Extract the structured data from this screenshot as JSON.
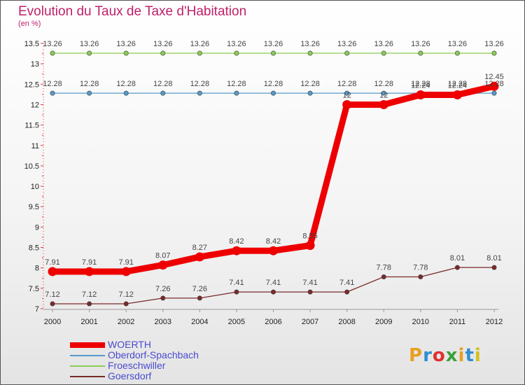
{
  "title": "Evolution du Taux de Taxe d'Habitation",
  "subtitle": "(en %)",
  "logo": {
    "text": "Proxiti",
    "colors": [
      "#e8a020",
      "#2f8fd0",
      "#e03030",
      "#3ba03a",
      "#e8a020",
      "#2f8fd0",
      "#d0c020"
    ]
  },
  "chart_data": {
    "type": "line",
    "title": "Evolution du Taux de Taxe d'Habitation",
    "ylabel": "(en %)",
    "xlabel": "",
    "x": [
      "2000",
      "2001",
      "2002",
      "2003",
      "2004",
      "2005",
      "2006",
      "2007",
      "2008",
      "2009",
      "2010",
      "2011",
      "2012"
    ],
    "ylim": [
      7,
      13.5
    ],
    "yticks": [
      "7",
      "7.5",
      "8",
      "8.5",
      "9",
      "9.5",
      "10",
      "10.5",
      "11",
      "11.5",
      "12",
      "12.5",
      "13",
      "13.5"
    ],
    "legend_position": "bottom-left",
    "series": [
      {
        "name": "WOERTH",
        "color": "#ee0000",
        "values": [
          7.91,
          7.91,
          7.91,
          8.07,
          8.27,
          8.42,
          8.42,
          8.55,
          12,
          12,
          12.24,
          12.24,
          12.45
        ],
        "labels": [
          "7.91",
          "7.91",
          "7.91",
          "8.07",
          "8.27",
          "8.42",
          "8.42",
          "8.55",
          "12",
          "12",
          "12.24",
          "12.24",
          "12.45"
        ]
      },
      {
        "name": "Oberdorf-Spachbach",
        "color": "#5599cc",
        "values": [
          12.28,
          12.28,
          12.28,
          12.28,
          12.28,
          12.28,
          12.28,
          12.28,
          12.28,
          12.28,
          12.28,
          12.28,
          12.28
        ],
        "labels": [
          "12.28",
          "12.28",
          "12.28",
          "12.28",
          "12.28",
          "12.28",
          "12.28",
          "12.28",
          "12.28",
          "12.28",
          "12.28",
          "12.28",
          "12.28"
        ]
      },
      {
        "name": "Froeschwiller",
        "color": "#88cc55",
        "values": [
          13.26,
          13.26,
          13.26,
          13.26,
          13.26,
          13.26,
          13.26,
          13.26,
          13.26,
          13.26,
          13.26,
          13.26,
          13.26
        ],
        "labels": [
          "13.26",
          "13.26",
          "13.26",
          "13.26",
          "13.26",
          "13.26",
          "13.26",
          "13.26",
          "13.26",
          "13.26",
          "13.26",
          "13.26",
          "13.26"
        ]
      },
      {
        "name": "Goersdorf",
        "color": "#7a2a2a",
        "values": [
          7.12,
          7.12,
          7.12,
          7.26,
          7.26,
          7.41,
          7.41,
          7.41,
          7.41,
          7.78,
          7.78,
          8.01,
          8.01
        ],
        "labels": [
          "7.12",
          "7.12",
          "7.12",
          "7.26",
          "7.26",
          "7.41",
          "7.41",
          "7.41",
          "7.41",
          "7.78",
          "7.78",
          "8.01",
          "8.01"
        ]
      }
    ]
  }
}
